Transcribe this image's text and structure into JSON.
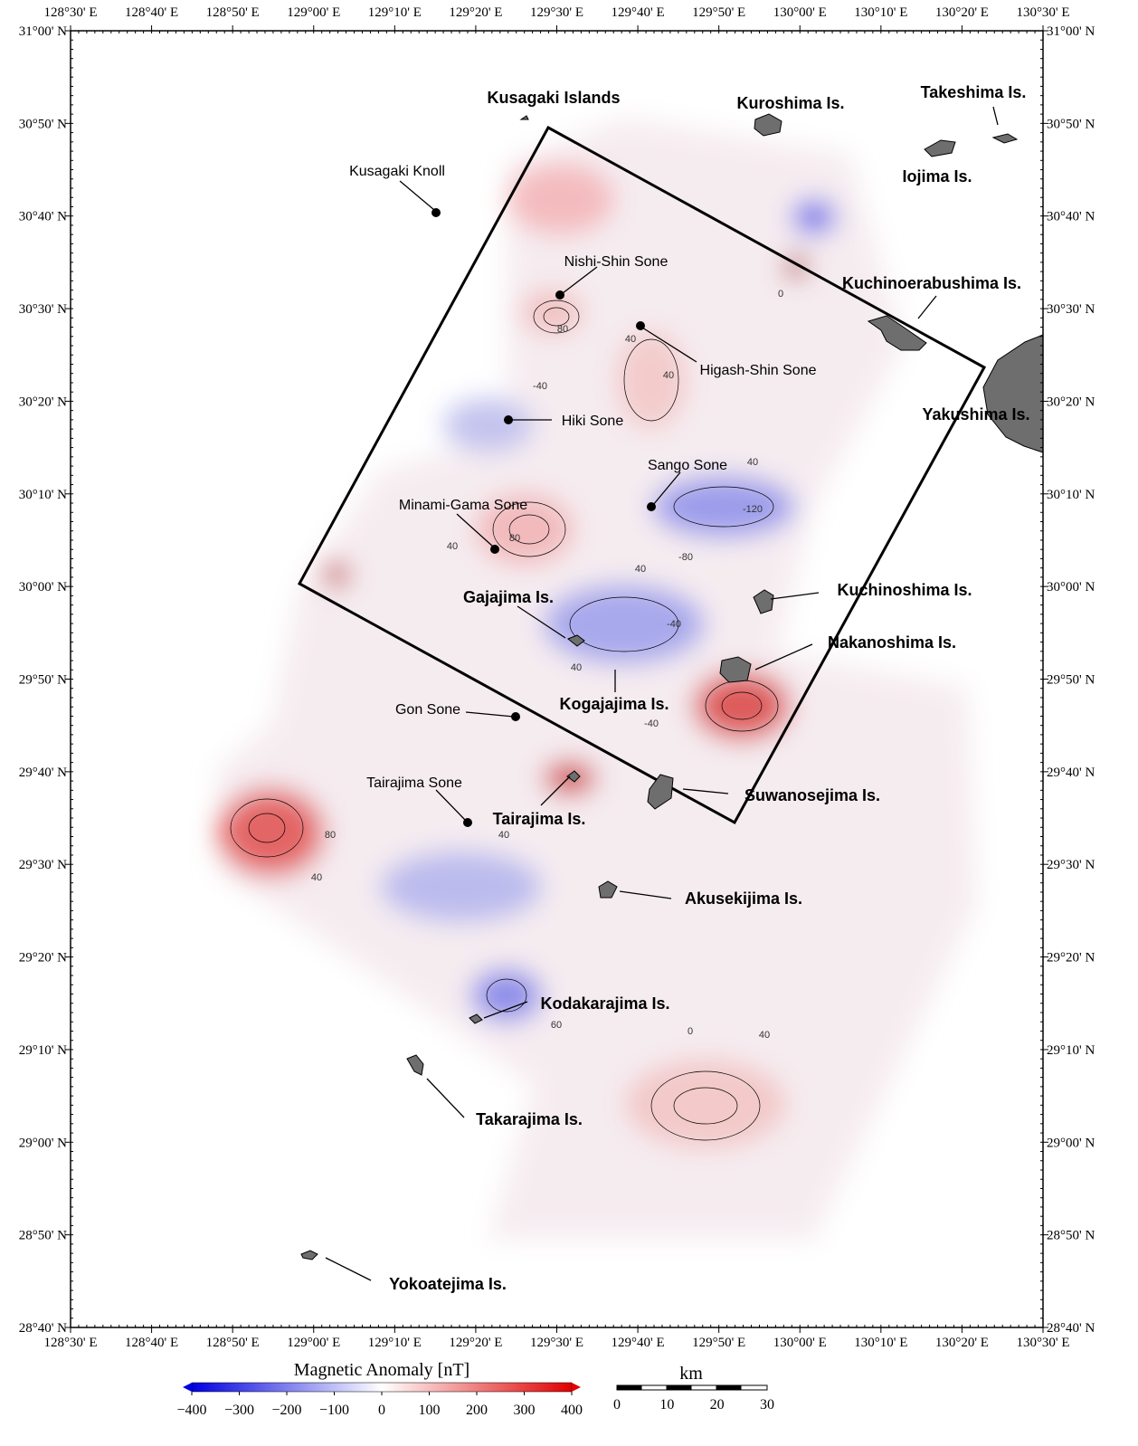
{
  "map": {
    "lon_labels": [
      "128°30' E",
      "128°40' E",
      "128°50' E",
      "129°00' E",
      "129°10' E",
      "129°20' E",
      "129°30' E",
      "129°40' E",
      "129°50' E",
      "130°00' E",
      "130°10' E",
      "130°20' E",
      "130°30' E"
    ],
    "lat_labels": [
      "31°00' N",
      "30°50' N",
      "30°40' N",
      "30°30' N",
      "30°20' N",
      "30°10' N",
      "30°00' N",
      "29°50' N",
      "29°40' N",
      "29°30' N",
      "29°20' N",
      "29°10' N",
      "29°00' N",
      "28°50' N",
      "28°40' N"
    ],
    "places": [
      "Kusagaki Islands",
      "Kuroshima  Is.",
      "Takeshima  Is.",
      "Iojima  Is.",
      "Kusagaki Knoll",
      "Kuchinoerabushima  Is.",
      "Nishi-Shin Sone",
      "Higash-Shin Sone",
      "Yakushima Is.",
      "Hiki Sone",
      "Sango Sone",
      "Minami-Gama Sone",
      "Kuchinoshima Is.",
      "Gajajima Is.",
      "Nakanoshima Is.",
      "Kogajajima Is.",
      "Gon Sone",
      "Tairajima Sone",
      "Suwanosejima Is.",
      "Tairajima Is.",
      "Akusekijima Is.",
      "Kodakarajima Is.",
      "Takarajima Is.",
      "Yokoatejima Is."
    ],
    "contour_labels": [
      "80",
      "40",
      "40",
      "-40",
      "0",
      "40",
      "-120",
      "-80",
      "40",
      "80",
      "40",
      "-40",
      "40",
      "80",
      "40",
      "40",
      "60",
      "0",
      "-40",
      "40"
    ]
  },
  "colorbar": {
    "title": "Magnetic Anomaly [nT]",
    "ticks": [
      "−400",
      "−300",
      "−200",
      "−100",
      "0",
      "100",
      "200",
      "300",
      "400"
    ]
  },
  "scale_bar": {
    "unit": "km",
    "ticks": [
      "0",
      "10",
      "20",
      "30"
    ]
  }
}
